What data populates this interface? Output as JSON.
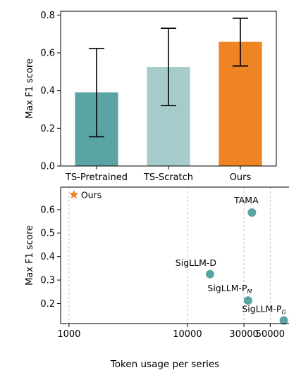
{
  "chart_data": [
    {
      "type": "bar",
      "ylabel": "Max F1 score",
      "ylim": [
        0,
        0.82
      ],
      "yticks": [
        0.0,
        0.2,
        0.4,
        0.6,
        0.8
      ],
      "ytick_labels": [
        "0.0",
        "0.2",
        "0.4",
        "0.6",
        "0.8"
      ],
      "grid": false,
      "categories": [
        "TS-Pretrained",
        "TS-Scratch",
        "Ours"
      ],
      "values": [
        0.39,
        0.525,
        0.658
      ],
      "error_low": [
        0.155,
        0.32,
        0.53
      ],
      "error_high": [
        0.623,
        0.73,
        0.783
      ],
      "colors": [
        "#5aa5a3",
        "#a5cccb",
        "#ee8424"
      ]
    },
    {
      "type": "scatter",
      "xlabel": "Token usage per series",
      "ylabel": "Max F1 score",
      "xscale": "log",
      "xlim": [
        850,
        72000
      ],
      "ylim": [
        0.115,
        0.695
      ],
      "xticks": [
        1000,
        10000,
        30000,
        50000
      ],
      "xtick_labels": [
        "1000",
        "10000",
        "30000",
        "50000"
      ],
      "yticks": [
        0.2,
        0.3,
        0.4,
        0.5,
        0.6
      ],
      "ytick_labels": [
        "0.2",
        "0.3",
        "0.4",
        "0.5",
        "0.6"
      ],
      "grid": "vertical dashed",
      "points": [
        {
          "label": "Ours",
          "sub": "",
          "x": 1100,
          "y": 0.663,
          "marker": "star",
          "color": "#ee8424"
        },
        {
          "label": "TAMA",
          "sub": "",
          "x": 35000,
          "y": 0.587,
          "marker": "circle",
          "color": "#5aa5a3"
        },
        {
          "label": "SigLLM-D",
          "sub": "",
          "x": 15500,
          "y": 0.325,
          "marker": "circle",
          "color": "#5aa5a3"
        },
        {
          "label": "SigLLM-P",
          "sub": "M",
          "x": 32500,
          "y": 0.213,
          "marker": "circle",
          "color": "#5aa5a3"
        },
        {
          "label": "SigLLM-P",
          "sub": "G",
          "x": 65000,
          "y": 0.128,
          "marker": "circle",
          "color": "#5aa5a3"
        }
      ]
    }
  ]
}
